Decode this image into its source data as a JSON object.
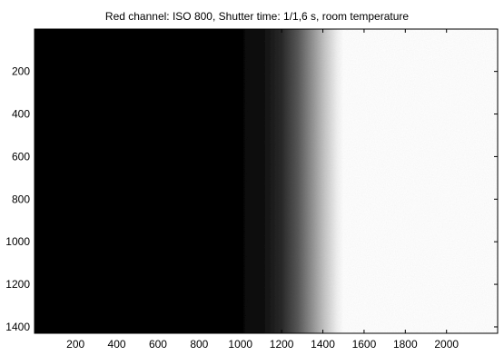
{
  "chart_data": {
    "type": "heatmap",
    "title": "Red channel: ISO 800, Shutter time: 1/1,6 s, room temperature",
    "xlabel": "",
    "ylabel": "",
    "xlim": [
      1,
      2248
    ],
    "ylim": [
      1,
      1430
    ],
    "y_reversed": true,
    "colormap": "gray",
    "grid": false,
    "x_ticks": [
      200,
      400,
      600,
      800,
      1000,
      1200,
      1400,
      1600,
      1800,
      2000
    ],
    "x_tick_labels": [
      "200",
      "400",
      "600",
      "800",
      "1000",
      "1200",
      "1400",
      "1600",
      "1800",
      "2000"
    ],
    "y_ticks": [
      200,
      400,
      600,
      800,
      1000,
      1200,
      1400
    ],
    "y_tick_labels": [
      "200",
      "400",
      "600",
      "800",
      "1000",
      "1200",
      "1400"
    ],
    "intensity_profile": [
      {
        "x": 1,
        "value": 0.02
      },
      {
        "x": 1000,
        "value": 0.02
      },
      {
        "x": 1100,
        "value": 0.05
      },
      {
        "x": 1200,
        "value": 0.16
      },
      {
        "x": 1280,
        "value": 0.35
      },
      {
        "x": 1350,
        "value": 0.58
      },
      {
        "x": 1410,
        "value": 0.78
      },
      {
        "x": 1470,
        "value": 0.95
      },
      {
        "x": 1500,
        "value": 1.0
      },
      {
        "x": 2248,
        "value": 1.0
      }
    ]
  }
}
